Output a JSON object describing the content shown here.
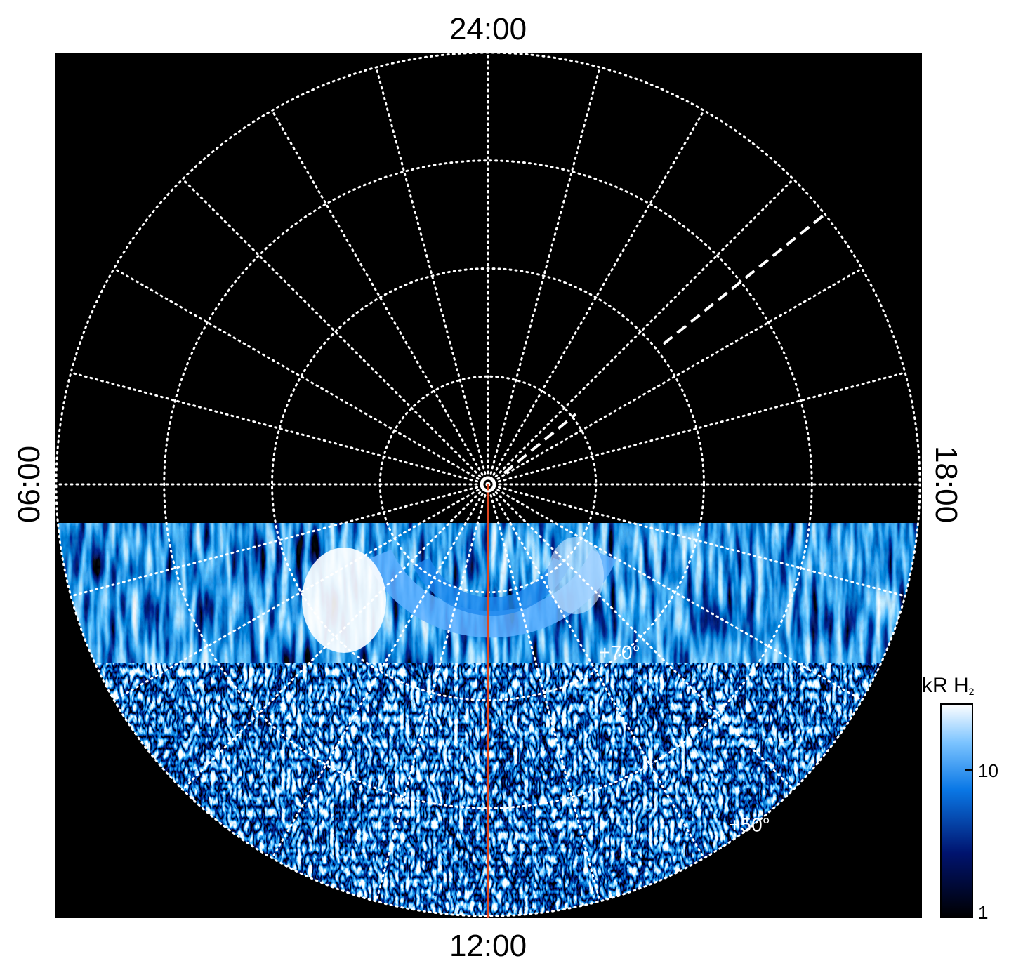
{
  "chart_data": {
    "type": "polar-image",
    "local_time_labels": {
      "top": "24:00",
      "bottom": "12:00",
      "left": "06:00",
      "right": "18:00"
    },
    "rlim": [
      90,
      50
    ],
    "rings": [
      80,
      70,
      60,
      50
    ],
    "ring_labels": [
      {
        "value": 70,
        "label": "+70°"
      },
      {
        "value": 50,
        "label": "+50°"
      }
    ],
    "hour_lines": 24,
    "colorbar": {
      "label": "kR H",
      "label_subscript": "2",
      "clim": [
        1,
        28
      ],
      "ticks": [
        1,
        10
      ],
      "log": true
    }
  }
}
